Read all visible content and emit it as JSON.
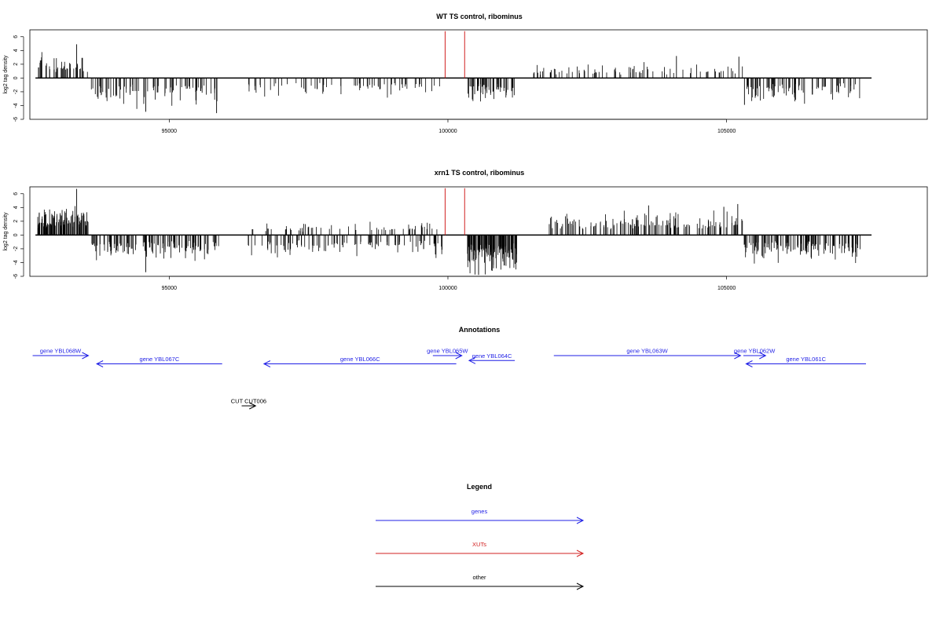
{
  "chart_data": [
    {
      "type": "bar",
      "title": "WT TS control, ribominus",
      "ylabel": "log2 tag density",
      "xlim": [
        92500,
        108600
      ],
      "ylim": [
        -6,
        7
      ],
      "x_ticks": [
        95000,
        100000,
        105000
      ],
      "y_ticks": [
        -6,
        -4,
        -2,
        0,
        2,
        4,
        6
      ],
      "baseline": {
        "x": [
          92600,
          107600
        ],
        "y": 0
      },
      "marker_color": "#d22222",
      "markers": [
        {
          "x": 99950,
          "y": 6.8
        },
        {
          "x": 100300,
          "y": 6.8
        }
      ],
      "segments": [
        {
          "x0": 92620,
          "x1": 93550,
          "y0": 0,
          "y1": 3.0,
          "n": 45,
          "seed": 11
        },
        {
          "x0": 93600,
          "x1": 95900,
          "y0": 0,
          "y1": -3.5,
          "n": 90,
          "seed": 12
        },
        {
          "x0": 96400,
          "x1": 99900,
          "y0": 0,
          "y1": -2.5,
          "n": 70,
          "seed": 13
        },
        {
          "x0": 100350,
          "x1": 101200,
          "y0": 0,
          "y1": -3.0,
          "n": 60,
          "seed": 14
        },
        {
          "x0": 101500,
          "x1": 105300,
          "y0": 0,
          "y1": 1.8,
          "n": 80,
          "seed": 15
        },
        {
          "x0": 105300,
          "x1": 107400,
          "y0": 0,
          "y1": -3.0,
          "n": 85,
          "seed": 16
        }
      ],
      "peaks": [
        {
          "x": 93340,
          "y": 4.9
        },
        {
          "x": 94580,
          "y": -4.9
        },
        {
          "x": 95850,
          "y": -5.1
        },
        {
          "x": 104100,
          "y": 3.2
        },
        {
          "x": 105220,
          "y": 3.1
        },
        {
          "x": 105320,
          "y": -3.9
        }
      ]
    },
    {
      "type": "bar",
      "title": "xrn1 TS control, ribominus",
      "ylabel": "log2 tag density",
      "xlim": [
        92500,
        108600
      ],
      "ylim": [
        -6,
        7
      ],
      "x_ticks": [
        95000,
        100000,
        105000
      ],
      "y_ticks": [
        -6,
        -4,
        -2,
        0,
        2,
        4,
        6
      ],
      "baseline": {
        "x": [
          92600,
          107600
        ],
        "y": 0
      },
      "marker_color": "#d22222",
      "markers": [
        {
          "x": 99950,
          "y": 6.8
        },
        {
          "x": 100300,
          "y": 6.8
        }
      ],
      "segments": [
        {
          "x0": 92620,
          "x1": 93550,
          "y0": 0,
          "y1": 3.5,
          "n": 120,
          "seed": 21
        },
        {
          "x0": 93600,
          "x1": 95900,
          "y0": 0,
          "y1": -3.2,
          "n": 120,
          "seed": 22
        },
        {
          "x0": 96400,
          "x1": 99900,
          "y0": 0,
          "y1": 1.8,
          "n": 60,
          "seed": 23
        },
        {
          "x0": 96400,
          "x1": 99900,
          "y0": 0,
          "y1": -2.8,
          "n": 110,
          "seed": 24
        },
        {
          "x0": 100350,
          "x1": 101250,
          "y0": 0,
          "y1": -4.5,
          "n": 130,
          "seed": 25
        },
        {
          "x0": 101800,
          "x1": 105300,
          "y0": 0,
          "y1": 3.0,
          "n": 140,
          "seed": 26
        },
        {
          "x0": 105300,
          "x1": 107400,
          "y0": 0,
          "y1": -3.2,
          "n": 130,
          "seed": 27
        }
      ],
      "peaks": [
        {
          "x": 93340,
          "y": 6.7
        },
        {
          "x": 94580,
          "y": -5.4
        },
        {
          "x": 100550,
          "y": -5.8
        },
        {
          "x": 103600,
          "y": 4.3
        },
        {
          "x": 104950,
          "y": 4.1
        },
        {
          "x": 105200,
          "y": 4.5
        }
      ]
    }
  ],
  "annotations": {
    "title": "Annotations",
    "gene_color": "#1f1fe6",
    "other_color": "#000000",
    "genes": [
      {
        "label": "gene YBL068W",
        "x0": 92550,
        "x1": 93550,
        "row": 0,
        "strand": "+"
      },
      {
        "label": "gene YBL067C",
        "x0": 93700,
        "x1": 95950,
        "row": 1,
        "strand": "-"
      },
      {
        "label": "gene YBL066C",
        "x0": 96700,
        "x1": 100150,
        "row": 1,
        "strand": "-"
      },
      {
        "label": "gene YBL065W",
        "x0": 99730,
        "x1": 100250,
        "row": 0,
        "strand": "+"
      },
      {
        "label": "gene YBL064C",
        "x0": 100380,
        "x1": 101200,
        "row": 0.6,
        "strand": "-"
      },
      {
        "label": "gene YBL063W",
        "x0": 101900,
        "x1": 105250,
        "row": 0,
        "strand": "+"
      },
      {
        "label": "gene YBL062W",
        "x0": 105300,
        "x1": 105700,
        "row": 0,
        "strand": "+"
      },
      {
        "label": "gene YBL061C",
        "x0": 105350,
        "x1": 107500,
        "row": 1,
        "strand": "-"
      }
    ],
    "other": [
      {
        "label": "CUT CUT006",
        "x0": 96300,
        "x1": 96550,
        "strand": "+"
      }
    ]
  },
  "legend": {
    "title": "Legend",
    "items": [
      {
        "label": "genes",
        "color": "#1f1fe6"
      },
      {
        "label": "XUTs",
        "color": "#d22222"
      },
      {
        "label": "other",
        "color": "#000000"
      }
    ]
  }
}
